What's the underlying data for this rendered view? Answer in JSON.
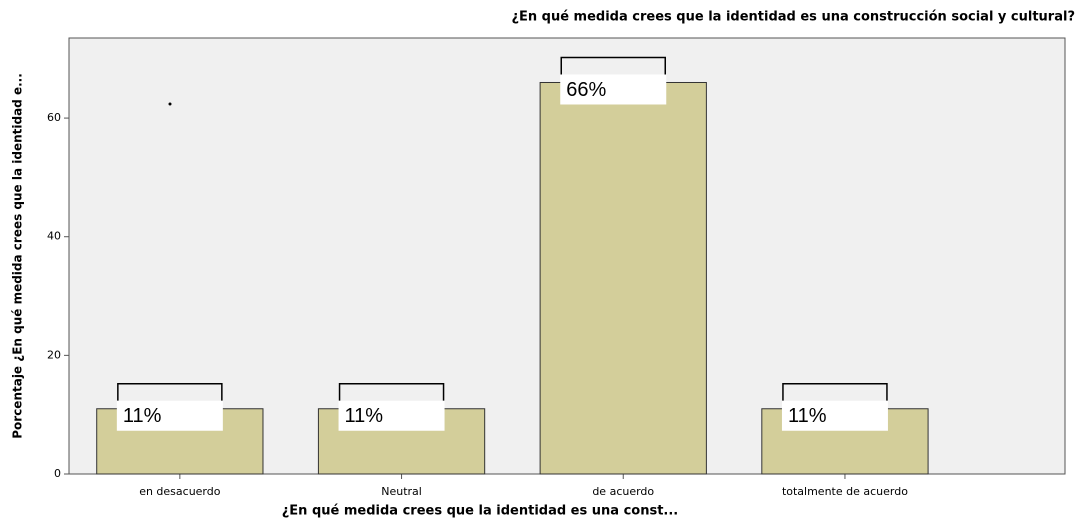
{
  "chart_data": {
    "type": "bar",
    "title": "¿En qué medida crees que la identidad es una construcción social y cultural?",
    "x_label": "¿En qué medida crees que la identidad es una const...",
    "y_label": "Porcentaje ¿En qué medida crees que la identidad e...",
    "categories": [
      "en desacuerdo",
      "Neutral",
      "de acuerdo",
      "totalmente de acuerdo"
    ],
    "values": [
      11,
      11,
      66,
      11
    ],
    "value_labels": [
      "11%",
      "11%",
      "66%",
      "11%"
    ],
    "color": "#d3ce9a",
    "ylim": [
      0,
      73.5
    ],
    "yticks": [
      0,
      20,
      40,
      60
    ]
  }
}
